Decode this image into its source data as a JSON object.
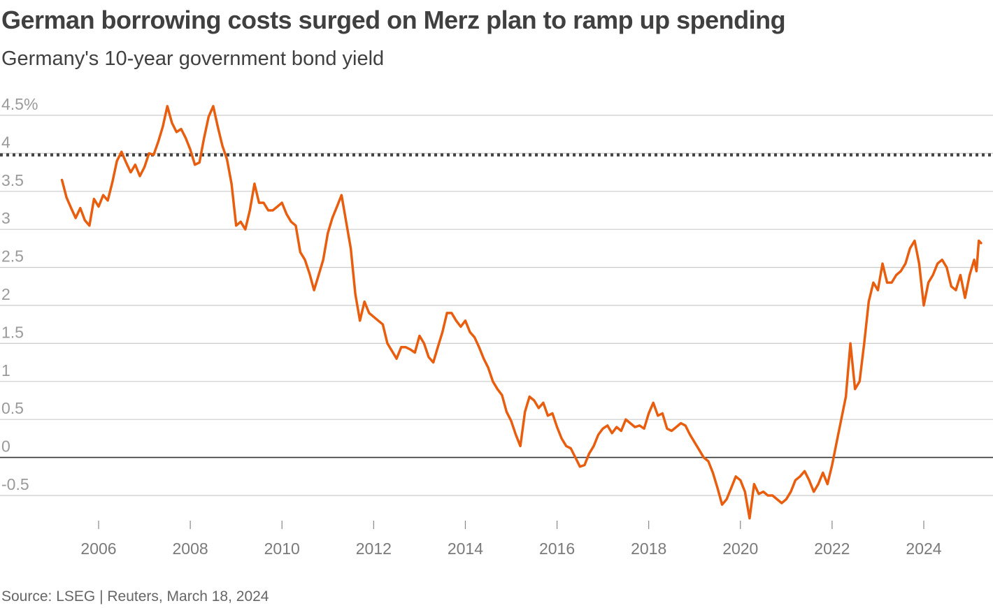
{
  "title": "German borrowing costs surged on Merz plan to ramp up spending",
  "subtitle": "Germany's 10-year government bond yield",
  "source": "Source: LSEG | Reuters, March 18, 2024",
  "colors": {
    "series": "#e85d0e",
    "gridline": "#cccccc",
    "zero_line": "#333333",
    "reference_line": "#444444",
    "text": "#404040"
  },
  "chart_data": {
    "type": "line",
    "title": "German borrowing costs surged on Merz plan to ramp up spending",
    "subtitle": "Germany's 10-year government bond yield",
    "xlabel": "",
    "ylabel": "",
    "ylim": [
      -0.95,
      4.7
    ],
    "xlim": [
      2005.0,
      2025.35
    ],
    "yticks": [
      {
        "value": 4.5,
        "label": "4.5%"
      },
      {
        "value": 4,
        "label": "4"
      },
      {
        "value": 3.5,
        "label": "3.5"
      },
      {
        "value": 3,
        "label": "3"
      },
      {
        "value": 2.5,
        "label": "2.5"
      },
      {
        "value": 2,
        "label": "2"
      },
      {
        "value": 1.5,
        "label": "1.5"
      },
      {
        "value": 1,
        "label": "1"
      },
      {
        "value": 0.5,
        "label": "0.5"
      },
      {
        "value": 0,
        "label": "0"
      },
      {
        "value": -0.5,
        "label": "-0.5"
      }
    ],
    "xticks": [
      {
        "value": 2006,
        "label": "2006"
      },
      {
        "value": 2008,
        "label": "2008"
      },
      {
        "value": 2010,
        "label": "2010"
      },
      {
        "value": 2012,
        "label": "2012"
      },
      {
        "value": 2014,
        "label": "2014"
      },
      {
        "value": 2016,
        "label": "2016"
      },
      {
        "value": 2018,
        "label": "2018"
      },
      {
        "value": 2020,
        "label": "2020"
      },
      {
        "value": 2022,
        "label": "2022"
      },
      {
        "value": 2024,
        "label": "2024"
      }
    ],
    "reference_line": {
      "value": 3.98,
      "style": "dotted"
    },
    "grid": true,
    "series": [
      {
        "values": [
          [
            2005.2,
            3.65
          ],
          [
            2005.3,
            3.42
          ],
          [
            2005.4,
            3.28
          ],
          [
            2005.5,
            3.15
          ],
          [
            2005.6,
            3.28
          ],
          [
            2005.7,
            3.12
          ],
          [
            2005.8,
            3.05
          ],
          [
            2005.9,
            3.4
          ],
          [
            2006.0,
            3.3
          ],
          [
            2006.1,
            3.45
          ],
          [
            2006.2,
            3.38
          ],
          [
            2006.3,
            3.62
          ],
          [
            2006.4,
            3.9
          ],
          [
            2006.5,
            4.02
          ],
          [
            2006.6,
            3.88
          ],
          [
            2006.7,
            3.75
          ],
          [
            2006.8,
            3.85
          ],
          [
            2006.9,
            3.7
          ],
          [
            2007.0,
            3.82
          ],
          [
            2007.1,
            4.0
          ],
          [
            2007.2,
            3.98
          ],
          [
            2007.3,
            4.15
          ],
          [
            2007.4,
            4.35
          ],
          [
            2007.5,
            4.62
          ],
          [
            2007.6,
            4.4
          ],
          [
            2007.7,
            4.28
          ],
          [
            2007.8,
            4.32
          ],
          [
            2007.9,
            4.2
          ],
          [
            2008.0,
            4.05
          ],
          [
            2008.1,
            3.85
          ],
          [
            2008.2,
            3.88
          ],
          [
            2008.3,
            4.2
          ],
          [
            2008.4,
            4.48
          ],
          [
            2008.5,
            4.62
          ],
          [
            2008.6,
            4.35
          ],
          [
            2008.7,
            4.1
          ],
          [
            2008.8,
            3.92
          ],
          [
            2008.9,
            3.6
          ],
          [
            2009.0,
            3.05
          ],
          [
            2009.1,
            3.1
          ],
          [
            2009.2,
            3.0
          ],
          [
            2009.3,
            3.25
          ],
          [
            2009.4,
            3.6
          ],
          [
            2009.5,
            3.35
          ],
          [
            2009.6,
            3.35
          ],
          [
            2009.7,
            3.25
          ],
          [
            2009.8,
            3.25
          ],
          [
            2009.9,
            3.3
          ],
          [
            2010.0,
            3.35
          ],
          [
            2010.1,
            3.2
          ],
          [
            2010.2,
            3.1
          ],
          [
            2010.3,
            3.05
          ],
          [
            2010.4,
            2.7
          ],
          [
            2010.5,
            2.6
          ],
          [
            2010.6,
            2.42
          ],
          [
            2010.7,
            2.2
          ],
          [
            2010.8,
            2.4
          ],
          [
            2010.9,
            2.6
          ],
          [
            2011.0,
            2.95
          ],
          [
            2011.1,
            3.15
          ],
          [
            2011.2,
            3.3
          ],
          [
            2011.3,
            3.45
          ],
          [
            2011.4,
            3.1
          ],
          [
            2011.5,
            2.75
          ],
          [
            2011.6,
            2.15
          ],
          [
            2011.7,
            1.8
          ],
          [
            2011.8,
            2.05
          ],
          [
            2011.9,
            1.9
          ],
          [
            2012.0,
            1.85
          ],
          [
            2012.1,
            1.8
          ],
          [
            2012.2,
            1.75
          ],
          [
            2012.3,
            1.5
          ],
          [
            2012.4,
            1.4
          ],
          [
            2012.5,
            1.3
          ],
          [
            2012.6,
            1.45
          ],
          [
            2012.7,
            1.45
          ],
          [
            2012.8,
            1.42
          ],
          [
            2012.9,
            1.38
          ],
          [
            2013.0,
            1.6
          ],
          [
            2013.1,
            1.5
          ],
          [
            2013.2,
            1.32
          ],
          [
            2013.3,
            1.25
          ],
          [
            2013.4,
            1.45
          ],
          [
            2013.5,
            1.65
          ],
          [
            2013.6,
            1.9
          ],
          [
            2013.7,
            1.9
          ],
          [
            2013.8,
            1.8
          ],
          [
            2013.9,
            1.72
          ],
          [
            2014.0,
            1.8
          ],
          [
            2014.1,
            1.65
          ],
          [
            2014.2,
            1.58
          ],
          [
            2014.3,
            1.45
          ],
          [
            2014.4,
            1.3
          ],
          [
            2014.5,
            1.18
          ],
          [
            2014.6,
            1.0
          ],
          [
            2014.7,
            0.9
          ],
          [
            2014.8,
            0.82
          ],
          [
            2014.9,
            0.6
          ],
          [
            2015.0,
            0.48
          ],
          [
            2015.1,
            0.3
          ],
          [
            2015.2,
            0.15
          ],
          [
            2015.3,
            0.6
          ],
          [
            2015.4,
            0.8
          ],
          [
            2015.5,
            0.75
          ],
          [
            2015.6,
            0.65
          ],
          [
            2015.7,
            0.72
          ],
          [
            2015.8,
            0.55
          ],
          [
            2015.9,
            0.58
          ],
          [
            2016.0,
            0.4
          ],
          [
            2016.1,
            0.25
          ],
          [
            2016.2,
            0.15
          ],
          [
            2016.3,
            0.12
          ],
          [
            2016.4,
            0.0
          ],
          [
            2016.5,
            -0.12
          ],
          [
            2016.6,
            -0.1
          ],
          [
            2016.7,
            0.05
          ],
          [
            2016.8,
            0.15
          ],
          [
            2016.9,
            0.3
          ],
          [
            2017.0,
            0.38
          ],
          [
            2017.1,
            0.42
          ],
          [
            2017.2,
            0.32
          ],
          [
            2017.3,
            0.4
          ],
          [
            2017.4,
            0.35
          ],
          [
            2017.5,
            0.5
          ],
          [
            2017.6,
            0.45
          ],
          [
            2017.7,
            0.4
          ],
          [
            2017.8,
            0.42
          ],
          [
            2017.9,
            0.38
          ],
          [
            2018.0,
            0.58
          ],
          [
            2018.1,
            0.72
          ],
          [
            2018.2,
            0.55
          ],
          [
            2018.3,
            0.58
          ],
          [
            2018.4,
            0.38
          ],
          [
            2018.5,
            0.35
          ],
          [
            2018.6,
            0.4
          ],
          [
            2018.7,
            0.45
          ],
          [
            2018.8,
            0.42
          ],
          [
            2018.9,
            0.3
          ],
          [
            2019.0,
            0.2
          ],
          [
            2019.1,
            0.1
          ],
          [
            2019.2,
            0.0
          ],
          [
            2019.3,
            -0.05
          ],
          [
            2019.4,
            -0.2
          ],
          [
            2019.5,
            -0.4
          ],
          [
            2019.6,
            -0.62
          ],
          [
            2019.7,
            -0.55
          ],
          [
            2019.8,
            -0.4
          ],
          [
            2019.9,
            -0.25
          ],
          [
            2020.0,
            -0.3
          ],
          [
            2020.1,
            -0.45
          ],
          [
            2020.2,
            -0.8
          ],
          [
            2020.3,
            -0.35
          ],
          [
            2020.4,
            -0.48
          ],
          [
            2020.5,
            -0.45
          ],
          [
            2020.6,
            -0.5
          ],
          [
            2020.7,
            -0.5
          ],
          [
            2020.8,
            -0.55
          ],
          [
            2020.9,
            -0.6
          ],
          [
            2021.0,
            -0.55
          ],
          [
            2021.1,
            -0.45
          ],
          [
            2021.2,
            -0.3
          ],
          [
            2021.3,
            -0.25
          ],
          [
            2021.4,
            -0.18
          ],
          [
            2021.5,
            -0.3
          ],
          [
            2021.6,
            -0.45
          ],
          [
            2021.7,
            -0.35
          ],
          [
            2021.8,
            -0.2
          ],
          [
            2021.9,
            -0.35
          ],
          [
            2022.0,
            -0.1
          ],
          [
            2022.1,
            0.2
          ],
          [
            2022.2,
            0.5
          ],
          [
            2022.3,
            0.8
          ],
          [
            2022.4,
            1.5
          ],
          [
            2022.5,
            0.9
          ],
          [
            2022.6,
            1.0
          ],
          [
            2022.7,
            1.5
          ],
          [
            2022.8,
            2.05
          ],
          [
            2022.9,
            2.3
          ],
          [
            2023.0,
            2.2
          ],
          [
            2023.1,
            2.55
          ],
          [
            2023.2,
            2.3
          ],
          [
            2023.3,
            2.3
          ],
          [
            2023.4,
            2.4
          ],
          [
            2023.5,
            2.45
          ],
          [
            2023.6,
            2.55
          ],
          [
            2023.7,
            2.75
          ],
          [
            2023.8,
            2.85
          ],
          [
            2023.9,
            2.55
          ],
          [
            2024.0,
            2.0
          ],
          [
            2024.1,
            2.3
          ],
          [
            2024.2,
            2.4
          ],
          [
            2024.3,
            2.55
          ],
          [
            2024.4,
            2.6
          ],
          [
            2024.5,
            2.5
          ],
          [
            2024.6,
            2.25
          ],
          [
            2024.7,
            2.2
          ],
          [
            2024.8,
            2.4
          ],
          [
            2024.9,
            2.1
          ],
          [
            2025.0,
            2.4
          ],
          [
            2025.1,
            2.6
          ],
          [
            2025.15,
            2.45
          ],
          [
            2025.2,
            2.85
          ],
          [
            2025.25,
            2.82
          ]
        ]
      }
    ]
  }
}
